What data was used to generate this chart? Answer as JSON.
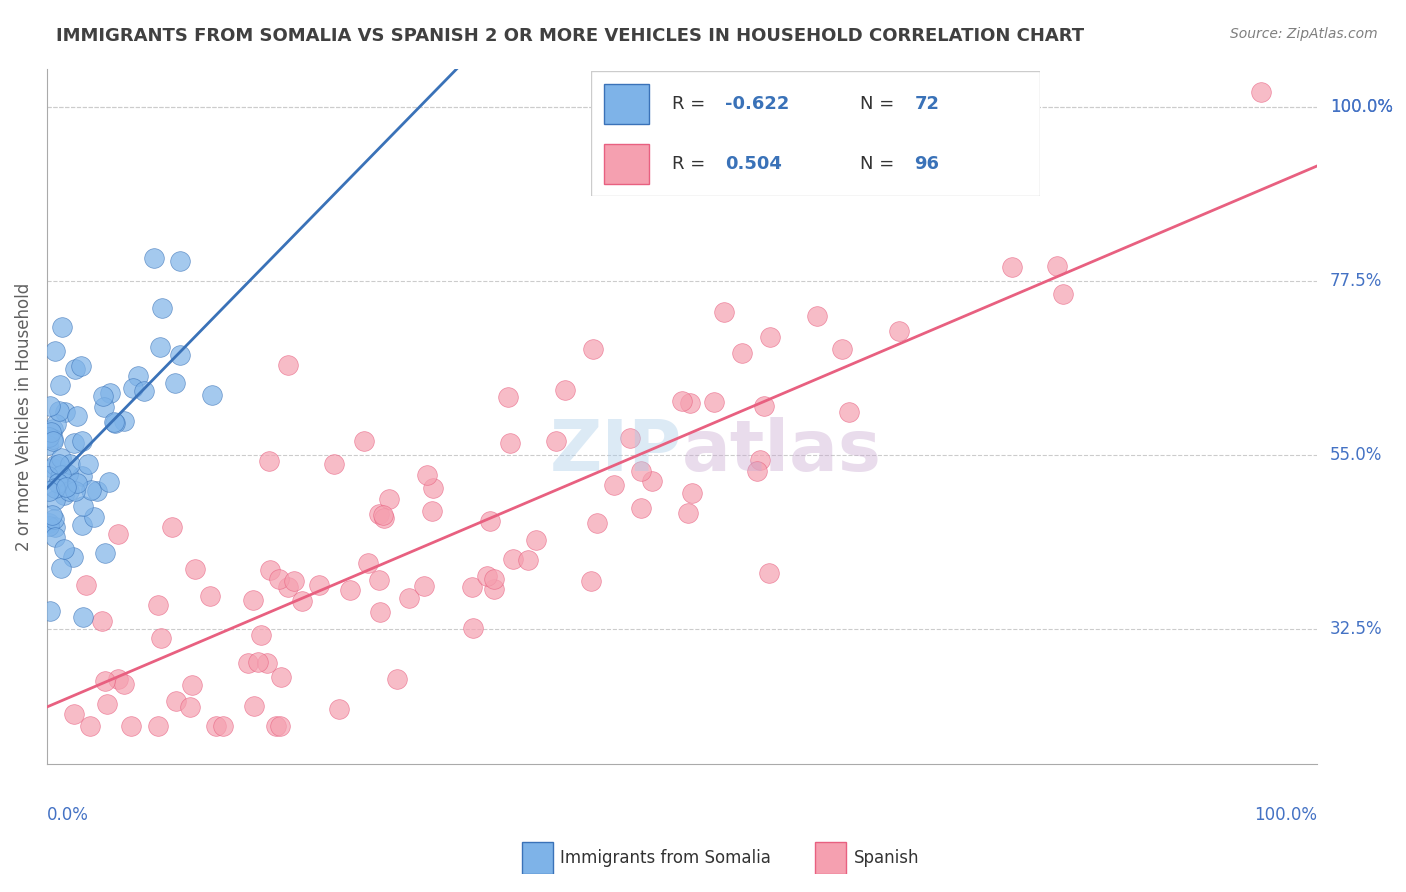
{
  "title": "IMMIGRANTS FROM SOMALIA VS SPANISH 2 OR MORE VEHICLES IN HOUSEHOLD CORRELATION CHART",
  "source": "Source: ZipAtlas.com",
  "xlabel_bottom_left": "0.0%",
  "xlabel_bottom_right": "100.0%",
  "ylabel": "2 or more Vehicles in Household",
  "yticks": [
    0.325,
    0.55,
    0.775,
    1.0
  ],
  "ytick_labels": [
    "32.5%",
    "55.0%",
    "77.5%",
    "100.0%"
  ],
  "xlim": [
    0.0,
    1.0
  ],
  "ylim": [
    0.15,
    1.05
  ],
  "blue_color": "#7EB3E8",
  "blue_line_color": "#3A72B8",
  "pink_color": "#F5A0B0",
  "pink_line_color": "#E86080",
  "blue_R": -0.622,
  "blue_N": 72,
  "pink_R": 0.504,
  "pink_N": 96,
  "watermark": "ZIPAtlas",
  "watermark_color_zip": "#A0C8E0",
  "watermark_color_atlas": "#C8A0C8",
  "legend_label_blue": "Immigrants from Somalia",
  "legend_label_pink": "Spanish",
  "background_color": "#FFFFFF",
  "grid_color": "#CCCCCC",
  "title_color": "#404040",
  "axis_label_color": "#4472C4",
  "tick_label_color": "#4472C4"
}
